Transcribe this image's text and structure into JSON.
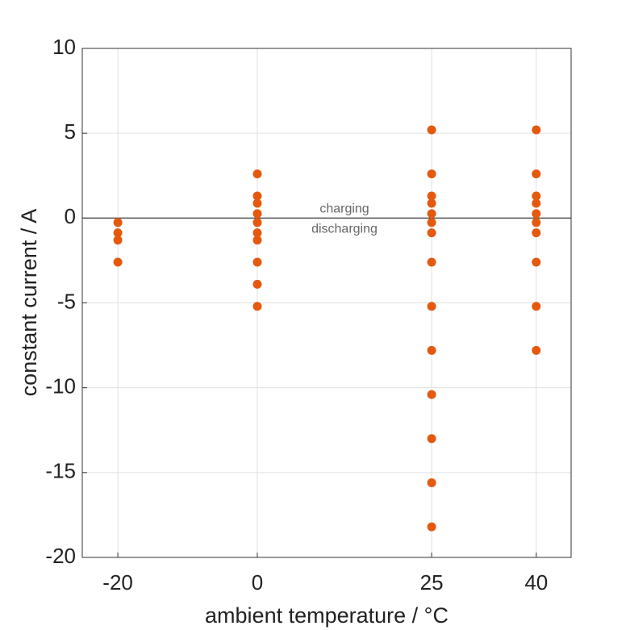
{
  "chart_data": {
    "type": "scatter",
    "xlabel": "ambient temperature / °C",
    "ylabel": "constant current / A",
    "annotations": [
      "charging",
      "discharging"
    ],
    "x": [
      -20,
      -20,
      -20,
      -20,
      0,
      0,
      0,
      0,
      0,
      0,
      0,
      0,
      0,
      0,
      25,
      25,
      25,
      25,
      25,
      25,
      25,
      25,
      25,
      25,
      25,
      25,
      25,
      25,
      40,
      40,
      40,
      40,
      40,
      40,
      40,
      40,
      40,
      40
    ],
    "y": [
      -0.26,
      -0.87,
      -1.3,
      -2.6,
      2.6,
      1.3,
      0.87,
      0.26,
      -0.26,
      -0.87,
      -1.3,
      -2.6,
      -3.9,
      -5.2,
      5.2,
      2.6,
      1.3,
      0.87,
      0.26,
      -0.26,
      -0.87,
      -2.6,
      -5.2,
      -7.8,
      -10.4,
      -13,
      -15.6,
      -18.2,
      5.2,
      2.6,
      1.3,
      0.87,
      0.26,
      -0.26,
      -0.87,
      -2.6,
      -5.2,
      -7.8
    ],
    "color": "#e5590f",
    "xlim": [
      -25.1,
      45
    ],
    "xticks": [
      -20,
      0,
      25,
      40
    ],
    "ylim": [
      -20,
      10
    ],
    "yticks": [
      -20,
      -15,
      -10,
      -5,
      0,
      5,
      10
    ],
    "grid": true
  }
}
